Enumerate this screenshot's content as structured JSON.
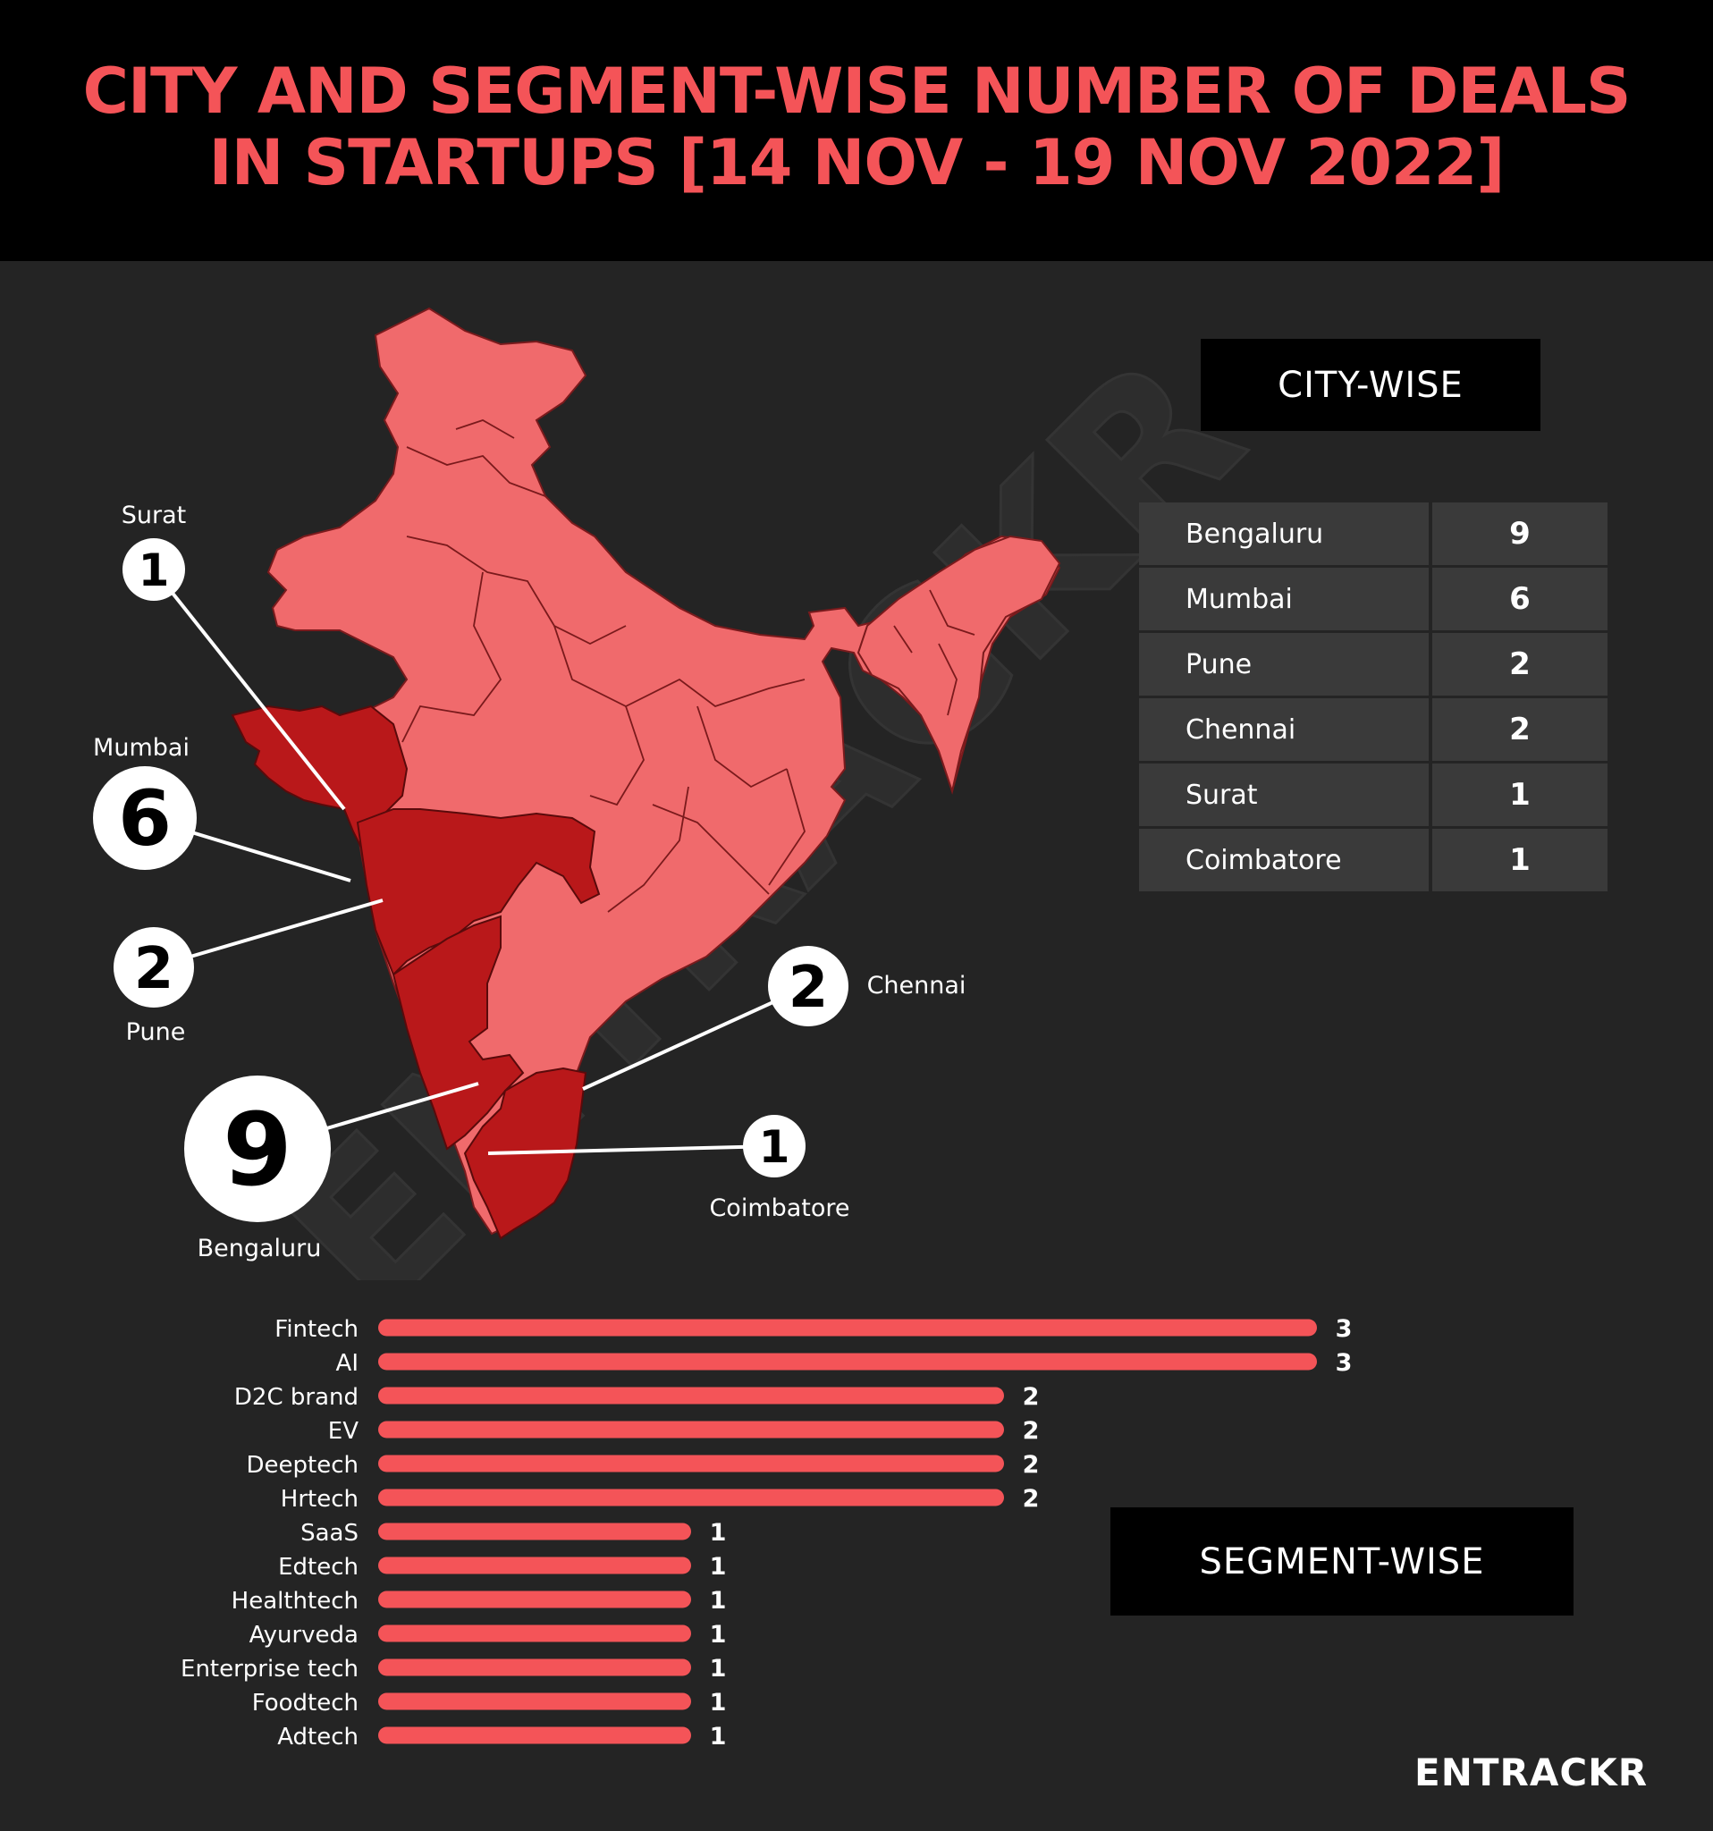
{
  "title": {
    "line1": "CITY AND SEGMENT-WISE NUMBER OF DEALS",
    "line2": "IN STARTUPS [14 NOV - 19 NOV 2022]"
  },
  "city_section_label": "CITY-WISE",
  "segment_section_label": "SEGMENT-WISE",
  "logo": "ENTRACKR",
  "colors": {
    "accent": "#f45458",
    "map_base": "#f06a6c",
    "map_highlight": "#b9181a",
    "background": "#242424",
    "header": "#000000"
  },
  "chart_data": [
    {
      "type": "table",
      "title": "CITY-WISE",
      "rows": [
        {
          "city": "Bengaluru",
          "deals": 9
        },
        {
          "city": "Mumbai",
          "deals": 6
        },
        {
          "city": "Pune",
          "deals": 2
        },
        {
          "city": "Chennai",
          "deals": 2
        },
        {
          "city": "Surat",
          "deals": 1
        },
        {
          "city": "Coimbatore",
          "deals": 1
        }
      ],
      "map_callouts": [
        {
          "city": "Surat",
          "value": "1"
        },
        {
          "city": "Mumbai",
          "value": "6"
        },
        {
          "city": "Pune",
          "value": "2"
        },
        {
          "city": "Bengaluru",
          "value": "9"
        },
        {
          "city": "Chennai",
          "value": "2"
        },
        {
          "city": "Coimbatore",
          "value": "1"
        }
      ]
    },
    {
      "type": "bar",
      "orientation": "horizontal",
      "title": "SEGMENT-WISE",
      "categories": [
        "Fintech",
        "AI",
        "D2C brand",
        "EV",
        "Deeptech",
        "Hrtech",
        "SaaS",
        "Edtech",
        "Healthtech",
        "Ayurveda",
        "Enterprise tech",
        "Foodtech",
        "Adtech"
      ],
      "values": [
        3,
        3,
        2,
        2,
        2,
        2,
        1,
        1,
        1,
        1,
        1,
        1,
        1
      ],
      "xlim": [
        0,
        3
      ]
    }
  ]
}
